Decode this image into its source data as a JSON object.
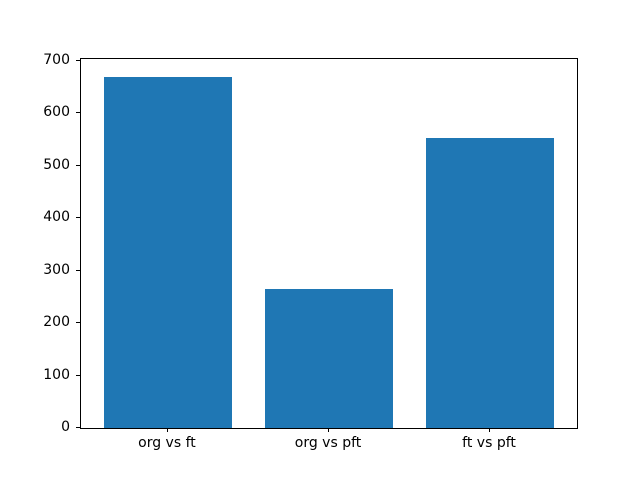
{
  "chart_data": {
    "type": "bar",
    "title": "",
    "categories": [
      "org vs ft",
      "org vs pft",
      "ft vs pft"
    ],
    "values": [
      670,
      265,
      552
    ],
    "bar_color": "#1f77b4",
    "xlabel": "",
    "ylabel": "",
    "ylim": [
      0,
      703.5
    ],
    "yticks": [
      0,
      100,
      200,
      300,
      400,
      500,
      600,
      700
    ],
    "bar_width_fraction": 0.8,
    "grid": false,
    "legend": null,
    "background_color": "#ffffff",
    "axis_color": "#000000",
    "tick_label_color": "#000000"
  }
}
